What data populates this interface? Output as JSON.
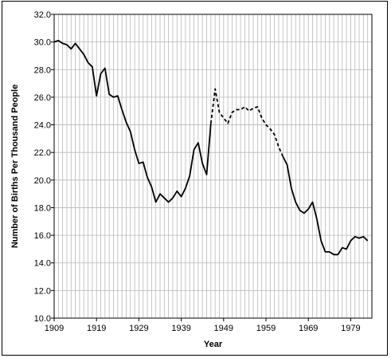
{
  "chart_data": {
    "type": "line",
    "title": "",
    "xlabel": "Year",
    "ylabel": "Number of Births Per Thousand People",
    "xlim": [
      1909,
      1984
    ],
    "ylim": [
      10.0,
      32.0
    ],
    "x_ticks": [
      "1909",
      "1919",
      "1929",
      "1939",
      "1949",
      "1959",
      "1969",
      "1979"
    ],
    "y_ticks": [
      "10.0",
      "12.0",
      "14.0",
      "16.0",
      "18.0",
      "20.0",
      "22.0",
      "24.0",
      "26.0",
      "28.0",
      "30.0",
      "32.0"
    ],
    "grid": "vertical at every year, horizontal at every 2.0",
    "series": [
      {
        "style": "solid",
        "x": [
          1909,
          1910,
          1911,
          1912,
          1913,
          1914,
          1915,
          1916,
          1917,
          1918,
          1919,
          1920,
          1921,
          1922,
          1923,
          1924,
          1925,
          1926,
          1927,
          1928,
          1929,
          1930,
          1931,
          1932,
          1933,
          1934,
          1935,
          1936,
          1937,
          1938,
          1939,
          1940,
          1941,
          1942,
          1943,
          1944,
          1945,
          1946
        ],
        "y": [
          30.0,
          30.1,
          29.9,
          29.8,
          29.5,
          29.9,
          29.5,
          29.1,
          28.5,
          28.2,
          26.1,
          27.7,
          28.1,
          26.2,
          26.0,
          26.1,
          25.1,
          24.2,
          23.5,
          22.2,
          21.2,
          21.3,
          20.2,
          19.5,
          18.4,
          19.0,
          18.7,
          18.4,
          18.7,
          19.2,
          18.8,
          19.4,
          20.3,
          22.2,
          22.7,
          21.2,
          20.4,
          24.1
        ]
      },
      {
        "style": "dashed",
        "x": [
          1946,
          1947,
          1948,
          1949,
          1950,
          1951,
          1952,
          1953,
          1954,
          1955,
          1956,
          1957,
          1958,
          1959,
          1960,
          1961,
          1962,
          1963
        ],
        "y": [
          24.1,
          26.6,
          24.9,
          24.5,
          24.1,
          24.9,
          25.1,
          25.1,
          25.3,
          25.0,
          25.2,
          25.3,
          24.5,
          24.0,
          23.7,
          23.3,
          22.4,
          21.7
        ]
      },
      {
        "style": "solid",
        "x": [
          1963,
          1964,
          1965,
          1966,
          1967,
          1968,
          1969,
          1970,
          1971,
          1972,
          1973,
          1974,
          1975,
          1976,
          1977,
          1978,
          1979,
          1980,
          1981,
          1982,
          1983
        ],
        "y": [
          21.7,
          21.1,
          19.4,
          18.4,
          17.8,
          17.6,
          17.9,
          18.4,
          17.2,
          15.6,
          14.8,
          14.8,
          14.6,
          14.6,
          15.1,
          15.0,
          15.6,
          15.9,
          15.8,
          15.9,
          15.6
        ]
      }
    ]
  }
}
